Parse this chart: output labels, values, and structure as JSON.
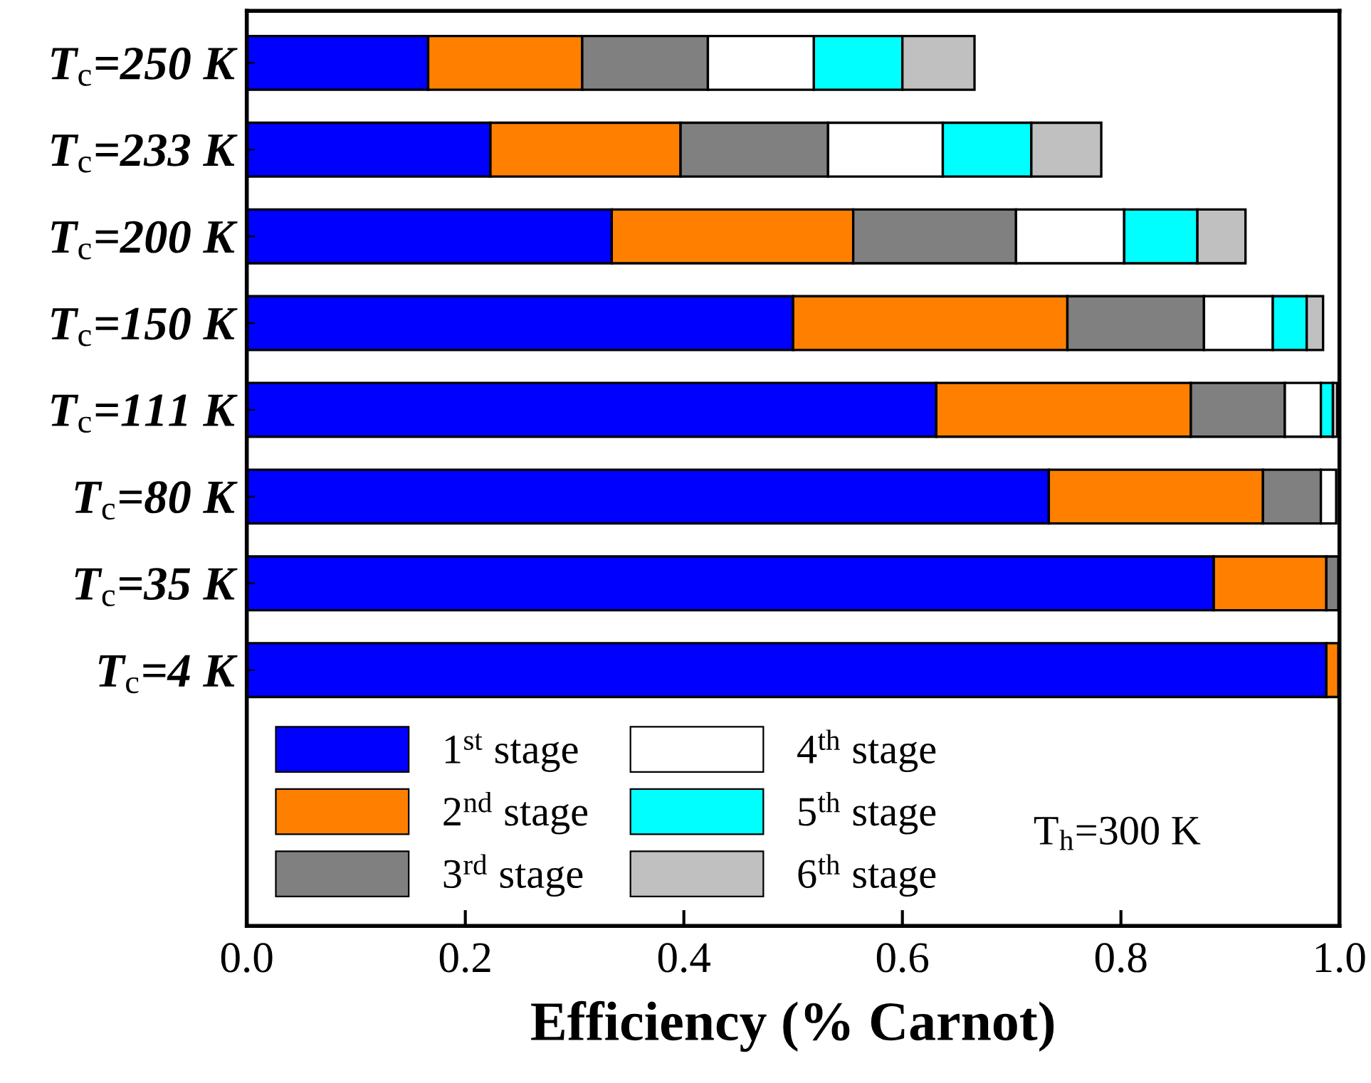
{
  "chart_data": {
    "type": "bar",
    "orientation": "horizontal",
    "stacked": true,
    "xlabel": "Efficiency (% Carnot)",
    "categories": [
      "T$_{c}$=250 K",
      "T$_{c}$=233 K",
      "T$_{c}$=200 K",
      "T$_{c}$=150 K",
      "T$_{c}$=111 K",
      "T$_{c}$=80 K",
      "T$_{c}$=35 K",
      "T$_{c}$=4 K"
    ],
    "series": [
      {
        "name": "1$^{st}$ stage",
        "color": "#0000ff",
        "values": [
          0.166,
          0.223,
          0.334,
          0.5,
          0.631,
          0.734,
          0.885,
          0.988
        ]
      },
      {
        "name": "2$^{nd}$ stage",
        "color": "#ff8000",
        "values": [
          0.141,
          0.174,
          0.221,
          0.251,
          0.233,
          0.196,
          0.103,
          0.011
        ]
      },
      {
        "name": "3$^{rd}$ stage",
        "color": "#808080",
        "values": [
          0.115,
          0.135,
          0.149,
          0.125,
          0.086,
          0.053,
          0.011,
          null
        ]
      },
      {
        "name": "4$^{th}$ stage",
        "color": "#ffffff",
        "values": [
          0.097,
          0.105,
          0.099,
          0.063,
          0.033,
          0.014,
          null,
          null
        ]
      },
      {
        "name": "5$^{th}$ stage",
        "color": "#00ffff",
        "values": [
          0.081,
          0.081,
          0.067,
          0.031,
          0.011,
          null,
          null,
          null
        ]
      },
      {
        "name": "6$^{th}$ stage",
        "color": "#c0c0c0",
        "values": [
          0.066,
          0.064,
          0.044,
          0.015,
          0.004,
          null,
          null,
          null
        ]
      }
    ],
    "xlim": [
      0.0,
      1.0
    ],
    "xticks": [
      {
        "value": 0.0,
        "label": "0.0"
      },
      {
        "value": 0.2,
        "label": "0.2"
      },
      {
        "value": 0.4,
        "label": "0.4"
      },
      {
        "value": 0.6,
        "label": "0.6"
      },
      {
        "value": 0.8,
        "label": "0.8"
      },
      {
        "value": 1.0,
        "label": "1.0"
      }
    ],
    "annotations": [
      "T$_{h}$=300 K"
    ],
    "legend": "bottom left",
    "grid": false
  }
}
